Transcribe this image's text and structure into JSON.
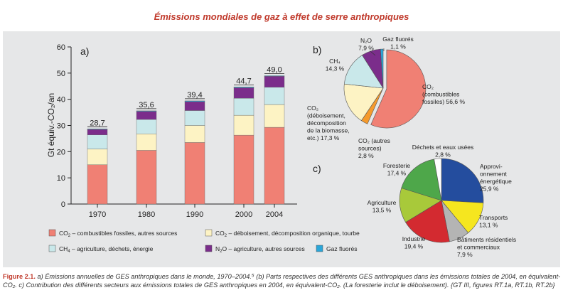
{
  "title": "Émissions mondiales de gaz à effet de serre anthropiques",
  "caption": {
    "label": "Figure 2.1.",
    "text": "a) Émissions annuelles de GES anthropiques dans le monde, 1970–2004.⁵ (b) Parts respectives des différents GES anthropiques dans les émissions totales de 2004, en équivalent-CO₂. c) Contribution des différents secteurs aux émissions totales de GES anthropiques en 2004, en équivalent-CO₂. (La foresterie inclut le déboisement). {GT III, figures RT.1a, RT.1b, RT.2b}"
  },
  "colors": {
    "co2_fossil": "#f08074",
    "co2_deforest": "#fdf3c4",
    "ch4": "#c9e8ea",
    "n2o": "#7b2d8b",
    "fgas": "#2aa6d9",
    "co2_other": "#f59a2c",
    "energy": "#244d9e",
    "transport": "#f5e61f",
    "buildings": "#b4b4b4",
    "industry": "#d32a30",
    "agriculture": "#a8c93a",
    "forestry": "#4ea74a",
    "waste": "#ffffff"
  },
  "chart_data": [
    {
      "type": "bar",
      "panel_label": "a)",
      "stacked": true,
      "ylabel": "Gt équiv.-CO₂/an",
      "ylim": [
        0,
        60
      ],
      "yticks": [
        0,
        10,
        20,
        30,
        40,
        50,
        60
      ],
      "categories": [
        "1970",
        "1980",
        "1990",
        "2000",
        "2004"
      ],
      "totals": [
        "28,7",
        "35,6",
        "39,4",
        "44,7",
        "49,0"
      ],
      "series": [
        {
          "name": "CO2 – combustibles fossiles, autres sources",
          "key": "co2_fossil",
          "values": [
            15.0,
            20.5,
            23.5,
            26.3,
            29.3
          ]
        },
        {
          "name": "CO2 – déboisement, décomposition organique, tourbe",
          "key": "co2_deforest",
          "values": [
            6.0,
            6.3,
            6.5,
            7.6,
            8.7
          ]
        },
        {
          "name": "CH4 – agriculture, déchets, énergie",
          "key": "ch4",
          "values": [
            5.4,
            5.5,
            5.7,
            6.5,
            6.6
          ]
        },
        {
          "name": "N2O – agriculture, autres sources",
          "key": "n2o",
          "values": [
            2.1,
            3.1,
            3.4,
            4.0,
            4.2
          ]
        },
        {
          "name": "Gaz fluorés",
          "key": "fgas",
          "values": [
            0.2,
            0.2,
            0.3,
            0.3,
            0.2
          ]
        }
      ],
      "legend": [
        {
          "key": "co2_fossil",
          "prefix": "CO",
          "sub": "2",
          "label": " – combustibles fossiles, autres sources"
        },
        {
          "key": "co2_deforest",
          "prefix": "CO",
          "sub": "2",
          "label": " – déboisement, décomposition organique, tourbe"
        },
        {
          "key": "ch4",
          "prefix": "CH",
          "sub": "4",
          "label": " – agriculture, déchets, énergie"
        },
        {
          "key": "n2o",
          "prefix": "N",
          "sub": "2",
          "label": "O – agriculture, autres sources"
        },
        {
          "key": "fgas",
          "prefix": "",
          "sub": "",
          "label": "Gaz fluorés"
        }
      ]
    },
    {
      "type": "pie",
      "panel_label": "b)",
      "slices": [
        {
          "key": "co2_fossil",
          "value": 56.6,
          "lines": [
            "CO₂",
            "(combustibles",
            "fossiles) 56,6 %"
          ]
        },
        {
          "key": "co2_other",
          "value": 2.8,
          "lines": [
            "CO₂ (autres",
            "sources)",
            "2,8 %"
          ]
        },
        {
          "key": "co2_deforest",
          "value": 17.3,
          "lines": [
            "CO₂",
            "(déboisement,",
            "décomposition",
            "de la biomasse,",
            "etc.) 17,3 %"
          ]
        },
        {
          "key": "ch4",
          "value": 14.3,
          "lines": [
            "CH₄",
            "14,3 %"
          ]
        },
        {
          "key": "n2o",
          "value": 7.9,
          "lines": [
            "N₂O",
            "7,9 %"
          ]
        },
        {
          "key": "fgas",
          "value": 1.1,
          "lines": [
            "Gaz fluorés",
            "1,1 %"
          ]
        }
      ]
    },
    {
      "type": "pie",
      "panel_label": "c)",
      "slices": [
        {
          "key": "energy",
          "value": 25.9,
          "lines": [
            "Approvi-",
            "onnement",
            "énergétique",
            "25,9 %"
          ]
        },
        {
          "key": "transport",
          "value": 13.1,
          "lines": [
            "Transports",
            "13,1 %"
          ]
        },
        {
          "key": "buildings",
          "value": 7.9,
          "lines": [
            "Bâtiments résidentiels",
            "et commerciaux",
            "7,9 %"
          ]
        },
        {
          "key": "industry",
          "value": 19.4,
          "lines": [
            "Industrie",
            "19,4 %"
          ]
        },
        {
          "key": "agriculture",
          "value": 13.5,
          "lines": [
            "Agriculture",
            "13,5 %"
          ]
        },
        {
          "key": "forestry",
          "value": 17.4,
          "lines": [
            "Foresterie",
            "17,4 %"
          ]
        },
        {
          "key": "waste",
          "value": 2.8,
          "lines": [
            "Déchets et eaux usées",
            "2,8 %"
          ]
        }
      ]
    }
  ]
}
